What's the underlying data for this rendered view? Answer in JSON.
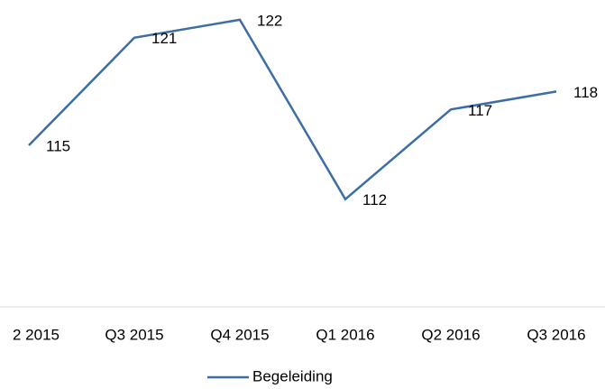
{
  "chart_data": {
    "type": "line",
    "categories": [
      "2 2015",
      "Q3 2015",
      "Q4 2015",
      "Q1 2016",
      "Q2 2016",
      "Q3 2016"
    ],
    "series": [
      {
        "name": "Begeleiding",
        "color": "#3c6ea6",
        "values": [
          115,
          121,
          122,
          112,
          117,
          118
        ]
      }
    ],
    "ylim": [
      106,
      123
    ],
    "legend": "bottom"
  }
}
